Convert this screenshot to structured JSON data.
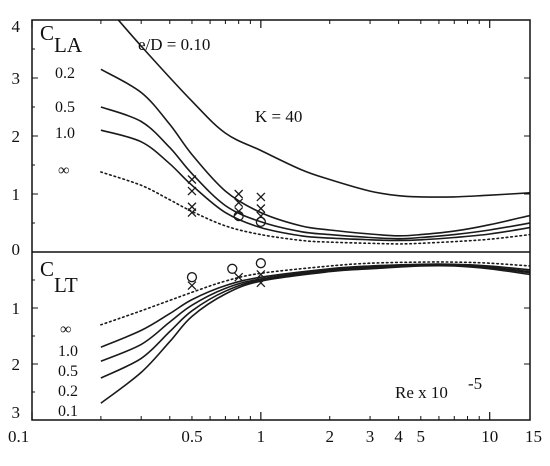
{
  "chart_data": [
    {
      "type": "line",
      "panel": "upper",
      "symbol": "C",
      "symbol_sub": "LA",
      "annotation_ratio": "e/D = 0.10",
      "annotation_k": "K = 40",
      "x_scale": "log",
      "xlim": [
        0.1,
        15
      ],
      "ylim": [
        0,
        4
      ],
      "y_ticks": [
        "0",
        "1",
        "2",
        "3",
        "4"
      ],
      "curve_labels": [
        "0.2",
        "0.5",
        "1.0",
        "∞"
      ],
      "series": [
        {
          "name": "0.10",
          "style": "solid",
          "x": [
            0.2,
            0.3,
            0.5,
            0.7,
            1.0,
            1.5,
            2,
            3,
            4,
            5,
            7,
            10,
            15
          ],
          "y": [
            4.35,
            3.55,
            2.6,
            2.05,
            1.75,
            1.42,
            1.25,
            1.05,
            0.97,
            0.95,
            0.95,
            0.98,
            1.02
          ]
        },
        {
          "name": "0.2",
          "style": "solid",
          "x": [
            0.2,
            0.3,
            0.4,
            0.5,
            0.7,
            1.0,
            1.5,
            2,
            3,
            4,
            5,
            7,
            10,
            15
          ],
          "y": [
            3.15,
            2.75,
            2.2,
            1.68,
            1.05,
            0.68,
            0.45,
            0.38,
            0.31,
            0.28,
            0.3,
            0.36,
            0.47,
            0.63
          ]
        },
        {
          "name": "0.5",
          "style": "solid",
          "x": [
            0.2,
            0.3,
            0.4,
            0.5,
            0.7,
            1.0,
            1.5,
            2,
            3,
            4,
            5,
            7,
            10,
            15
          ],
          "y": [
            2.5,
            2.25,
            1.8,
            1.35,
            0.8,
            0.52,
            0.35,
            0.3,
            0.25,
            0.23,
            0.25,
            0.3,
            0.38,
            0.5
          ]
        },
        {
          "name": "1.0",
          "style": "solid",
          "x": [
            0.2,
            0.3,
            0.4,
            0.5,
            0.7,
            1.0,
            1.5,
            2,
            3,
            4,
            5,
            7,
            10,
            15
          ],
          "y": [
            2.1,
            1.9,
            1.52,
            1.15,
            0.68,
            0.42,
            0.28,
            0.24,
            0.21,
            0.2,
            0.21,
            0.25,
            0.31,
            0.42
          ]
        },
        {
          "name": "∞",
          "style": "dotted",
          "x": [
            0.2,
            0.3,
            0.4,
            0.5,
            0.7,
            1.0,
            1.5,
            2,
            3,
            4,
            5,
            7,
            10,
            15
          ],
          "y": [
            1.38,
            1.15,
            0.9,
            0.7,
            0.45,
            0.3,
            0.2,
            0.17,
            0.15,
            0.14,
            0.15,
            0.18,
            0.22,
            0.3
          ]
        }
      ],
      "markers": [
        {
          "symbol": "×",
          "x": 0.5,
          "y": 1.25
        },
        {
          "symbol": "×",
          "x": 0.5,
          "y": 1.05
        },
        {
          "symbol": "×",
          "x": 0.5,
          "y": 0.78
        },
        {
          "symbol": "×",
          "x": 0.5,
          "y": 0.68
        },
        {
          "symbol": "×",
          "x": 0.8,
          "y": 1.0
        },
        {
          "symbol": "×",
          "x": 0.8,
          "y": 0.85
        },
        {
          "symbol": "×",
          "x": 0.8,
          "y": 0.7
        },
        {
          "symbol": "○",
          "x": 0.8,
          "y": 0.62
        },
        {
          "symbol": "×",
          "x": 1.0,
          "y": 0.95
        },
        {
          "symbol": "×",
          "x": 1.0,
          "y": 0.75
        },
        {
          "symbol": "×",
          "x": 1.0,
          "y": 0.62
        },
        {
          "symbol": "○",
          "x": 1.0,
          "y": 0.52
        }
      ]
    },
    {
      "type": "line",
      "panel": "lower",
      "symbol": "C",
      "symbol_sub": "LT",
      "annotation_re": "Re x 10",
      "annotation_re_exp": "-5",
      "x_scale": "log",
      "xlim": [
        0.1,
        15
      ],
      "ylim": [
        0,
        3
      ],
      "y_inverted": true,
      "y_ticks": [
        "1",
        "2",
        "3"
      ],
      "x_ticks": [
        "0.1",
        "0.5",
        "1",
        "2",
        "3",
        "4",
        "5",
        "10",
        "15"
      ],
      "curve_labels": [
        "∞",
        "1.0",
        "0.5",
        "0.2",
        "0.1"
      ],
      "series": [
        {
          "name": "∞",
          "style": "dotted",
          "x": [
            0.2,
            0.3,
            0.5,
            0.7,
            1.0,
            2,
            3,
            5,
            7,
            10,
            15
          ],
          "y": [
            1.3,
            1.05,
            0.72,
            0.52,
            0.38,
            0.25,
            0.2,
            0.18,
            0.18,
            0.2,
            0.25
          ]
        },
        {
          "name": "1.0",
          "style": "solid",
          "x": [
            0.2,
            0.3,
            0.4,
            0.5,
            0.7,
            1.0,
            2,
            3,
            5,
            7,
            10,
            15
          ],
          "y": [
            1.7,
            1.4,
            1.1,
            0.85,
            0.6,
            0.45,
            0.3,
            0.25,
            0.22,
            0.22,
            0.25,
            0.32
          ]
        },
        {
          "name": "0.5",
          "style": "solid",
          "x": [
            0.2,
            0.3,
            0.4,
            0.5,
            0.7,
            1.0,
            2,
            3,
            5,
            7,
            10,
            15
          ],
          "y": [
            1.95,
            1.65,
            1.25,
            0.95,
            0.65,
            0.48,
            0.32,
            0.27,
            0.23,
            0.23,
            0.27,
            0.35
          ]
        },
        {
          "name": "0.2",
          "style": "solid",
          "x": [
            0.2,
            0.3,
            0.4,
            0.5,
            0.7,
            1.0,
            2,
            3,
            5,
            7,
            10,
            15
          ],
          "y": [
            2.25,
            1.9,
            1.42,
            1.05,
            0.7,
            0.5,
            0.33,
            0.28,
            0.24,
            0.24,
            0.28,
            0.37
          ]
        },
        {
          "name": "0.1",
          "style": "solid",
          "x": [
            0.2,
            0.3,
            0.4,
            0.5,
            0.7,
            1.0,
            2,
            3,
            5,
            7,
            10,
            15
          ],
          "y": [
            2.7,
            2.15,
            1.6,
            1.15,
            0.75,
            0.52,
            0.35,
            0.3,
            0.25,
            0.25,
            0.3,
            0.4
          ]
        }
      ],
      "markers": [
        {
          "symbol": "○",
          "x": 0.5,
          "y": 0.45
        },
        {
          "symbol": "×",
          "x": 0.5,
          "y": 0.6
        },
        {
          "symbol": "○",
          "x": 0.75,
          "y": 0.3
        },
        {
          "symbol": "×",
          "x": 0.8,
          "y": 0.45
        },
        {
          "symbol": "○",
          "x": 1.0,
          "y": 0.2
        },
        {
          "symbol": "×",
          "x": 1.0,
          "y": 0.4
        },
        {
          "symbol": "×",
          "x": 1.0,
          "y": 0.55
        }
      ]
    }
  ]
}
